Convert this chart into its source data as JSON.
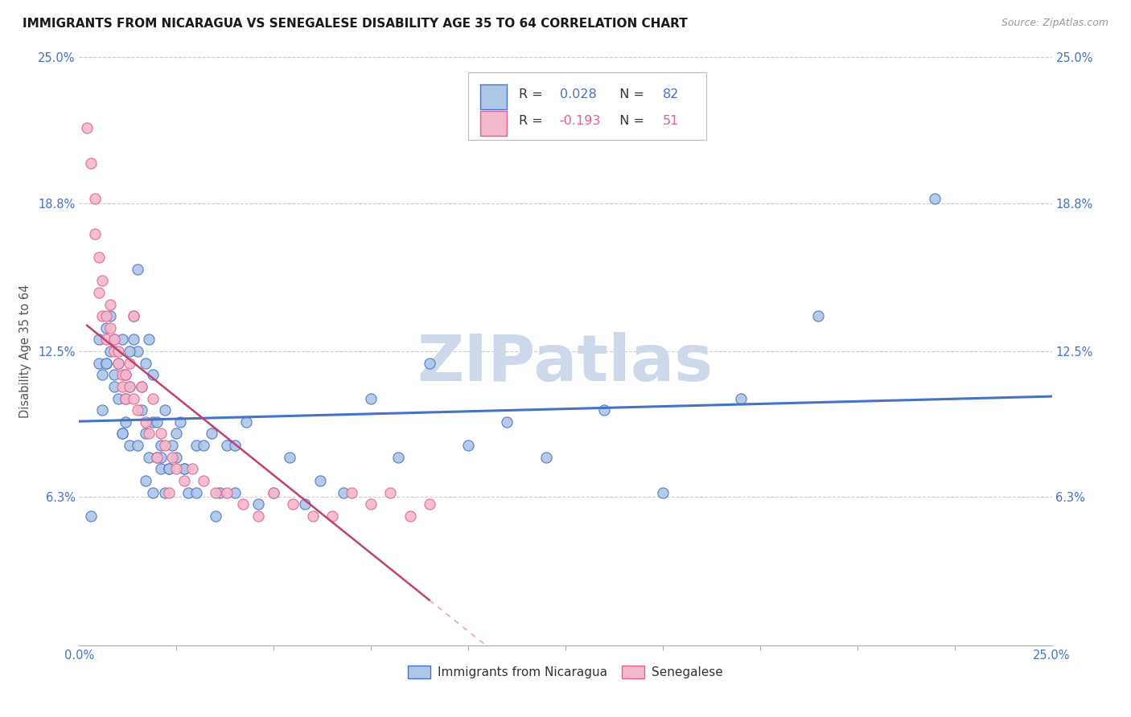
{
  "title": "IMMIGRANTS FROM NICARAGUA VS SENEGALESE DISABILITY AGE 35 TO 64 CORRELATION CHART",
  "source": "Source: ZipAtlas.com",
  "ylabel_label": "Disability Age 35 to 64",
  "legend_blue_label": "Immigrants from Nicaragua",
  "legend_pink_label": "Senegalese",
  "R_blue": 0.028,
  "N_blue": 82,
  "R_pink": -0.193,
  "N_pink": 51,
  "xlim": [
    0.0,
    0.25
  ],
  "ylim": [
    0.0,
    0.25
  ],
  "ytick_positions": [
    0.063,
    0.125,
    0.188,
    0.25
  ],
  "ytick_labels": [
    "6.3%",
    "12.5%",
    "18.8%",
    "25.0%"
  ],
  "xtick_positions": [
    0.0,
    0.25
  ],
  "xtick_labels": [
    "0.0%",
    "25.0%"
  ],
  "blue_scatter_x": [
    0.003,
    0.005,
    0.006,
    0.006,
    0.007,
    0.007,
    0.008,
    0.008,
    0.009,
    0.009,
    0.01,
    0.01,
    0.011,
    0.011,
    0.012,
    0.012,
    0.012,
    0.013,
    0.013,
    0.014,
    0.014,
    0.015,
    0.015,
    0.016,
    0.016,
    0.017,
    0.017,
    0.018,
    0.018,
    0.019,
    0.019,
    0.02,
    0.02,
    0.021,
    0.021,
    0.022,
    0.022,
    0.023,
    0.024,
    0.025,
    0.026,
    0.027,
    0.028,
    0.03,
    0.032,
    0.034,
    0.036,
    0.038,
    0.04,
    0.043,
    0.046,
    0.05,
    0.054,
    0.058,
    0.062,
    0.068,
    0.075,
    0.082,
    0.09,
    0.1,
    0.11,
    0.12,
    0.135,
    0.15,
    0.17,
    0.19,
    0.005,
    0.007,
    0.009,
    0.011,
    0.013,
    0.015,
    0.017,
    0.019,
    0.021,
    0.023,
    0.025,
    0.027,
    0.03,
    0.035,
    0.04,
    0.22
  ],
  "blue_scatter_y": [
    0.055,
    0.12,
    0.115,
    0.1,
    0.135,
    0.12,
    0.14,
    0.125,
    0.13,
    0.115,
    0.12,
    0.105,
    0.13,
    0.09,
    0.115,
    0.105,
    0.095,
    0.11,
    0.085,
    0.14,
    0.13,
    0.16,
    0.125,
    0.11,
    0.1,
    0.09,
    0.12,
    0.08,
    0.13,
    0.095,
    0.115,
    0.08,
    0.095,
    0.085,
    0.075,
    0.065,
    0.1,
    0.075,
    0.085,
    0.08,
    0.095,
    0.075,
    0.065,
    0.085,
    0.085,
    0.09,
    0.065,
    0.085,
    0.085,
    0.095,
    0.06,
    0.065,
    0.08,
    0.06,
    0.07,
    0.065,
    0.105,
    0.08,
    0.12,
    0.085,
    0.095,
    0.08,
    0.1,
    0.065,
    0.105,
    0.14,
    0.13,
    0.12,
    0.11,
    0.09,
    0.125,
    0.085,
    0.07,
    0.065,
    0.08,
    0.075,
    0.09,
    0.075,
    0.065,
    0.055,
    0.065,
    0.19
  ],
  "pink_scatter_x": [
    0.002,
    0.003,
    0.004,
    0.004,
    0.005,
    0.005,
    0.006,
    0.006,
    0.007,
    0.007,
    0.008,
    0.008,
    0.009,
    0.009,
    0.01,
    0.01,
    0.011,
    0.011,
    0.012,
    0.012,
    0.013,
    0.013,
    0.014,
    0.014,
    0.015,
    0.016,
    0.017,
    0.018,
    0.019,
    0.02,
    0.021,
    0.022,
    0.023,
    0.024,
    0.025,
    0.027,
    0.029,
    0.032,
    0.035,
    0.038,
    0.042,
    0.046,
    0.05,
    0.055,
    0.06,
    0.065,
    0.07,
    0.075,
    0.08,
    0.085,
    0.09
  ],
  "pink_scatter_y": [
    0.22,
    0.205,
    0.19,
    0.175,
    0.165,
    0.15,
    0.155,
    0.14,
    0.14,
    0.13,
    0.145,
    0.135,
    0.13,
    0.125,
    0.125,
    0.12,
    0.115,
    0.11,
    0.115,
    0.105,
    0.12,
    0.11,
    0.14,
    0.105,
    0.1,
    0.11,
    0.095,
    0.09,
    0.105,
    0.08,
    0.09,
    0.085,
    0.065,
    0.08,
    0.075,
    0.07,
    0.075,
    0.07,
    0.065,
    0.065,
    0.06,
    0.055,
    0.065,
    0.06,
    0.055,
    0.055,
    0.065,
    0.06,
    0.065,
    0.055,
    0.06
  ],
  "blue_line_color": "#4472C4",
  "pink_line_color": "#E06090",
  "pink_line_color_solid": "#C04070",
  "blue_scatter_facecolor": "#AEC6E8",
  "pink_scatter_facecolor": "#F4B8CC",
  "grid_color": "#CCCCCC",
  "watermark_color": "#CDD8EA",
  "background_color": "#FFFFFF",
  "title_fontsize": 11,
  "source_fontsize": 9,
  "axis_tick_color": "#4472C4"
}
